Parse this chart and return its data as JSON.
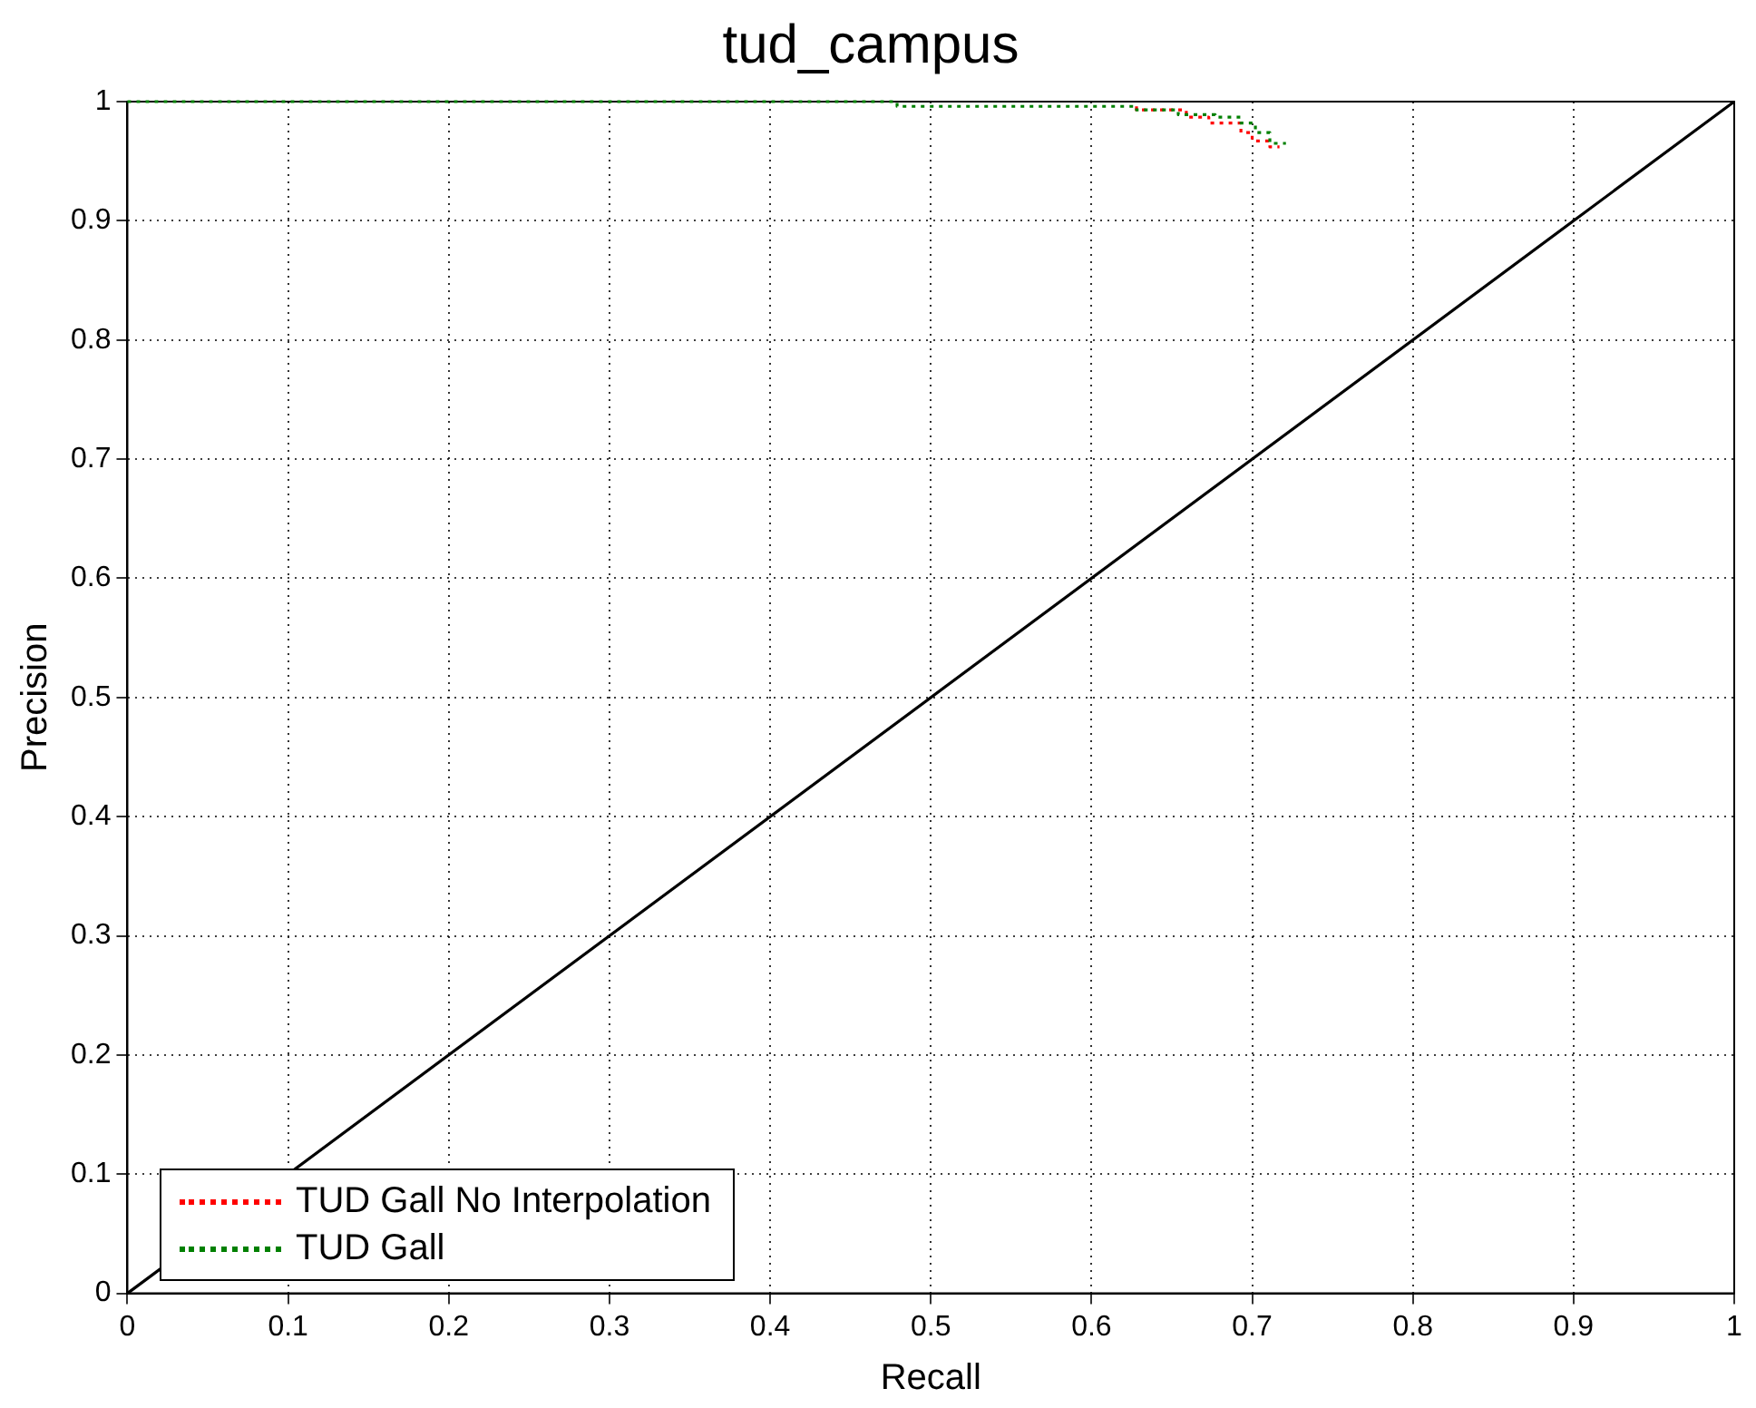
{
  "chart_data": {
    "type": "line",
    "title": "tud_campus",
    "xlabel": "Recall",
    "ylabel": "Precision",
    "xlim": [
      0,
      1
    ],
    "ylim": [
      0,
      1
    ],
    "xticks": [
      0,
      0.1,
      0.2,
      0.3,
      0.4,
      0.5,
      0.6,
      0.7,
      0.8,
      0.9,
      1
    ],
    "yticks": [
      0,
      0.1,
      0.2,
      0.3,
      0.4,
      0.5,
      0.6,
      0.7,
      0.8,
      0.9,
      1
    ],
    "grid": true,
    "legend": "bottom left",
    "marker": "none",
    "line_style": "dotted",
    "series": [
      {
        "name": "TUD Gall No Interpolation",
        "color": "#ff0000",
        "x": [
          0.628,
          0.628,
          0.659,
          0.659,
          0.673,
          0.673,
          0.693,
          0.693,
          0.7,
          0.7,
          0.711,
          0.711,
          0.717
        ],
        "values": [
          0.996,
          0.993,
          0.993,
          0.987,
          0.987,
          0.982,
          0.982,
          0.974,
          0.974,
          0.967,
          0.967,
          0.962,
          0.962
        ]
      },
      {
        "name": "TUD Gall",
        "color": "#008000",
        "x": [
          0,
          0.479,
          0.479,
          0.628,
          0.628,
          0.654,
          0.654,
          0.677,
          0.677,
          0.693,
          0.693,
          0.702,
          0.702,
          0.711,
          0.711,
          0.721
        ],
        "values": [
          1,
          1,
          0.996,
          0.996,
          0.993,
          0.993,
          0.989,
          0.989,
          0.987,
          0.987,
          0.982,
          0.982,
          0.974,
          0.974,
          0.965,
          0.965
        ]
      },
      {
        "color": "#000000",
        "line_style": "solid",
        "x": [
          0,
          1
        ],
        "values": [
          0,
          1
        ]
      }
    ]
  }
}
